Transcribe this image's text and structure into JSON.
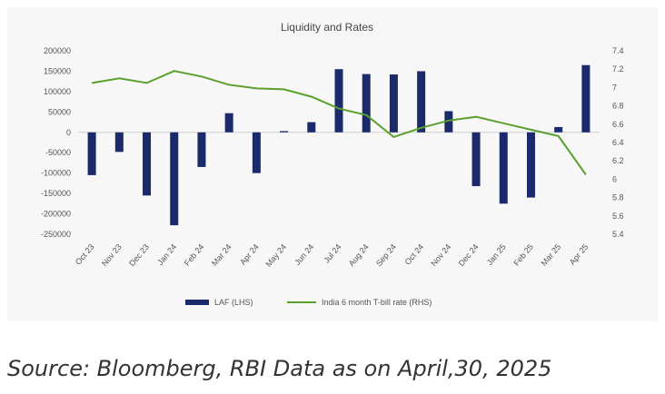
{
  "chart_data": {
    "type": "bar",
    "title": "Liquidity and Rates",
    "categories": [
      "Oct 23",
      "Nov 23",
      "Dec 23",
      "Jan 24",
      "Feb 24",
      "Mar 24",
      "Apr 24",
      "May 24",
      "Jun 24",
      "Jul 24",
      "Aug 24",
      "Sep 24",
      "Oct 24",
      "Nov 24",
      "Dec 24",
      "Jan 25",
      "Feb 25",
      "Mar 25",
      "Apr 25"
    ],
    "series": [
      {
        "name": "LAF (LHS)",
        "type": "bar",
        "axis": "left",
        "color": "#1b2a6b",
        "values": [
          -105000,
          -48000,
          -155000,
          -228000,
          -85000,
          47000,
          -100000,
          3000,
          25000,
          155000,
          143000,
          142000,
          150000,
          52000,
          -132000,
          -175000,
          -160000,
          13000,
          165000
        ]
      },
      {
        "name": "India 6 month T-bill rate (RHS)",
        "type": "line",
        "axis": "right",
        "color": "#5aa02c",
        "values": [
          7.05,
          7.1,
          7.05,
          7.18,
          7.12,
          7.03,
          6.99,
          6.98,
          6.9,
          6.77,
          6.7,
          6.46,
          6.56,
          6.64,
          6.68,
          6.61,
          6.54,
          6.47,
          6.05
        ]
      }
    ],
    "left_axis": {
      "ticks": [
        "200000",
        "150000",
        "100000",
        "50000",
        "0",
        "-50000",
        "-100000",
        "-150000",
        "-200000",
        "-250000"
      ],
      "ylim": [
        -250000,
        200000
      ]
    },
    "right_axis": {
      "ticks": [
        "7.4",
        "7.2",
        "7",
        "6.8",
        "6.6",
        "6.4",
        "6.2",
        "6",
        "5.8",
        "5.6",
        "5.4"
      ],
      "ylim": [
        5.4,
        7.4
      ]
    },
    "legend_position": "bottom",
    "grid": false
  },
  "footer": {
    "source": "Source: Bloomberg, RBI Data as on April,30, 2025"
  }
}
